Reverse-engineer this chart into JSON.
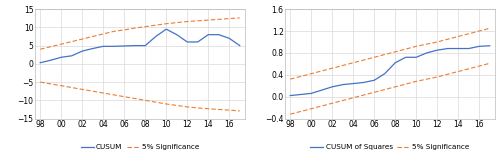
{
  "left": {
    "x_ticks": [
      "98",
      "00",
      "02",
      "04",
      "06",
      "08",
      "10",
      "12",
      "14",
      "16"
    ],
    "x_values": [
      1998,
      1999,
      2000,
      2001,
      2002,
      2003,
      2004,
      2005,
      2006,
      2007,
      2008,
      2009,
      2010,
      2011,
      2012,
      2013,
      2014,
      2015,
      2016,
      2017
    ],
    "cusum": [
      0.3,
      1.0,
      1.8,
      2.2,
      3.5,
      4.2,
      4.8,
      4.8,
      4.9,
      5.0,
      5.0,
      7.5,
      9.5,
      8.0,
      6.0,
      6.0,
      8.0,
      8.0,
      7.0,
      5.0
    ],
    "sig_upper": [
      4.0,
      4.7,
      5.4,
      6.1,
      6.8,
      7.5,
      8.2,
      8.9,
      9.3,
      9.8,
      10.2,
      10.6,
      11.0,
      11.3,
      11.6,
      11.8,
      12.0,
      12.2,
      12.4,
      12.6
    ],
    "sig_lower": [
      -5.0,
      -5.5,
      -6.0,
      -6.5,
      -7.0,
      -7.5,
      -8.0,
      -8.5,
      -9.0,
      -9.5,
      -10.0,
      -10.5,
      -11.0,
      -11.4,
      -11.8,
      -12.1,
      -12.3,
      -12.5,
      -12.7,
      -12.9
    ],
    "ylim": [
      -15,
      15
    ],
    "yticks": [
      -15,
      -10,
      -5,
      0,
      5,
      10,
      15
    ],
    "cusum_color": "#4472C4",
    "sig_color": "#ED7D31",
    "legend1": "CUSUM",
    "legend2": "5% Significance"
  },
  "right": {
    "x_ticks": [
      "98",
      "00",
      "02",
      "04",
      "06",
      "08",
      "10",
      "12",
      "14",
      "16"
    ],
    "x_values": [
      1998,
      1999,
      2000,
      2001,
      2002,
      2003,
      2004,
      2005,
      2006,
      2007,
      2008,
      2009,
      2010,
      2011,
      2012,
      2013,
      2014,
      2015,
      2016,
      2017
    ],
    "cusumsq": [
      0.02,
      0.04,
      0.06,
      0.12,
      0.18,
      0.22,
      0.24,
      0.26,
      0.3,
      0.42,
      0.62,
      0.72,
      0.72,
      0.8,
      0.85,
      0.88,
      0.88,
      0.88,
      0.92,
      0.93
    ],
    "sig_upper": [
      0.32,
      0.37,
      0.42,
      0.47,
      0.52,
      0.57,
      0.62,
      0.67,
      0.72,
      0.77,
      0.82,
      0.87,
      0.92,
      0.96,
      1.0,
      1.05,
      1.1,
      1.15,
      1.2,
      1.25
    ],
    "sig_lower": [
      -0.32,
      -0.27,
      -0.22,
      -0.17,
      -0.12,
      -0.07,
      -0.02,
      0.03,
      0.08,
      0.13,
      0.18,
      0.23,
      0.28,
      0.32,
      0.36,
      0.41,
      0.46,
      0.51,
      0.56,
      0.61
    ],
    "ylim": [
      -0.4,
      1.6
    ],
    "yticks": [
      -0.4,
      0.0,
      0.4,
      0.8,
      1.2,
      1.6
    ],
    "cusum_color": "#4472C4",
    "sig_color": "#ED7D31",
    "legend1": "CUSUM of Squares",
    "legend2": "5% Significance"
  },
  "background_color": "#ffffff",
  "grid_color": "#d9d9d9",
  "tick_fontsize": 5.5,
  "legend_fontsize": 5.2
}
